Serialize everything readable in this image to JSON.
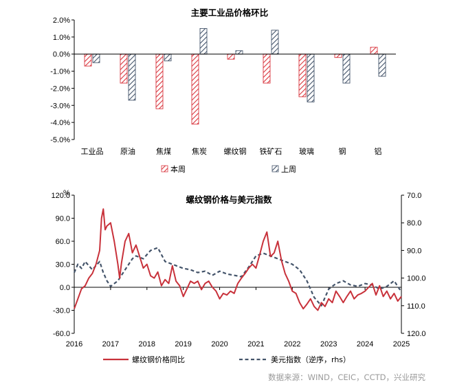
{
  "chart_data": [
    {
      "type": "bar",
      "title": "主要工业品价格环比",
      "categories": [
        "工业品",
        "原油",
        "焦煤",
        "焦炭",
        "螺纹钢",
        "铁矿石",
        "玻璃",
        "钢",
        "铝"
      ],
      "series": [
        {
          "name": "本周",
          "values": [
            -0.7,
            -1.7,
            -3.2,
            -4.1,
            -0.3,
            -1.7,
            -2.5,
            -0.2,
            0.4
          ],
          "color": "#d9363e",
          "pattern": "diagonal-hatch"
        },
        {
          "name": "上周",
          "values": [
            -0.5,
            -2.7,
            -0.4,
            1.5,
            0.2,
            1.4,
            -2.8,
            -1.7,
            -1.3
          ],
          "color": "#44546a",
          "pattern": "diagonal-hatch"
        }
      ],
      "ylim": [
        -5.0,
        2.0
      ],
      "yticks": [
        "2.0%",
        "1.0%",
        "0.0%",
        "-1.0%",
        "-2.0%",
        "-3.0%",
        "-4.0%",
        "-5.0%"
      ],
      "legend_position": "bottom"
    },
    {
      "type": "line",
      "title": "螺纹钢价格与美元指数",
      "ylabel_left": "%",
      "ylim_left": [
        -60,
        120
      ],
      "yticks_left": [
        "120.0",
        "90.0",
        "60.0",
        "30.0",
        "0.0",
        "-30.0",
        "-60.0"
      ],
      "ylim_right_reversed": [
        70,
        120
      ],
      "yticks_right": [
        "70.0",
        "80.0",
        "90.0",
        "100.0",
        "110.0",
        "120.0"
      ],
      "x_range": [
        2016.0,
        2025.0
      ],
      "xticks": [
        "2016",
        "2017",
        "2018",
        "2019",
        "2020",
        "2021",
        "2022",
        "2023",
        "2024",
        "2025"
      ],
      "series": [
        {
          "name": "螺纹钢价格同比",
          "axis": "left",
          "color": "#c8313a",
          "style": "solid",
          "x": [
            2016.0,
            2016.1,
            2016.2,
            2016.3,
            2016.4,
            2016.5,
            2016.6,
            2016.7,
            2016.75,
            2016.8,
            2016.85,
            2016.9,
            2017.0,
            2017.1,
            2017.2,
            2017.25,
            2017.3,
            2017.4,
            2017.5,
            2017.6,
            2017.7,
            2017.8,
            2017.9,
            2018.0,
            2018.1,
            2018.2,
            2018.3,
            2018.4,
            2018.5,
            2018.6,
            2018.7,
            2018.8,
            2018.9,
            2019.0,
            2019.1,
            2019.2,
            2019.3,
            2019.4,
            2019.5,
            2019.6,
            2019.7,
            2019.8,
            2019.9,
            2020.0,
            2020.1,
            2020.2,
            2020.3,
            2020.4,
            2020.5,
            2020.6,
            2020.7,
            2020.8,
            2020.9,
            2021.0,
            2021.1,
            2021.2,
            2021.3,
            2021.4,
            2021.5,
            2021.6,
            2021.7,
            2021.8,
            2021.9,
            2022.0,
            2022.1,
            2022.2,
            2022.3,
            2022.4,
            2022.5,
            2022.6,
            2022.7,
            2022.8,
            2022.9,
            2023.0,
            2023.1,
            2023.2,
            2023.3,
            2023.4,
            2023.5,
            2023.6,
            2023.7,
            2023.8,
            2023.9,
            2024.0,
            2024.1,
            2024.2,
            2024.3,
            2024.4,
            2024.5,
            2024.6,
            2024.7,
            2024.8,
            2024.9,
            2025.0
          ],
          "y": [
            -28,
            -15,
            -2,
            2,
            12,
            18,
            30,
            48,
            90,
            102,
            75,
            80,
            84,
            60,
            30,
            12,
            32,
            60,
            70,
            45,
            55,
            40,
            25,
            30,
            15,
            12,
            20,
            2,
            10,
            5,
            28,
            8,
            2,
            -12,
            -2,
            8,
            5,
            8,
            -3,
            5,
            8,
            0,
            -5,
            -15,
            -8,
            -10,
            -5,
            -8,
            5,
            12,
            18,
            25,
            30,
            25,
            42,
            60,
            72,
            40,
            45,
            60,
            35,
            18,
            8,
            -5,
            -8,
            -20,
            -28,
            -22,
            -15,
            -25,
            -30,
            -20,
            -25,
            -15,
            -20,
            -5,
            -12,
            -20,
            -12,
            -5,
            -15,
            -10,
            -8,
            -5,
            0,
            5,
            -10,
            2,
            -12,
            -5,
            -15,
            -8,
            -18,
            -12
          ]
        },
        {
          "name": "美元指数（逆序，rhs）",
          "axis": "right",
          "color": "#44546a",
          "style": "dashed",
          "x": [
            2016.0,
            2016.1,
            2016.2,
            2016.3,
            2016.5,
            2016.7,
            2016.8,
            2016.9,
            2017.0,
            2017.2,
            2017.4,
            2017.6,
            2017.7,
            2017.9,
            2018.1,
            2018.3,
            2018.5,
            2018.7,
            2018.9,
            2019.0,
            2019.2,
            2019.4,
            2019.6,
            2019.8,
            2020.0,
            2020.2,
            2020.4,
            2020.6,
            2020.8,
            2021.0,
            2021.2,
            2021.4,
            2021.6,
            2021.8,
            2022.0,
            2022.2,
            2022.4,
            2022.6,
            2022.8,
            2023.0,
            2023.2,
            2023.4,
            2023.6,
            2023.8,
            2024.0,
            2024.2,
            2024.4,
            2024.6,
            2024.8,
            2025.0
          ],
          "y": [
            98,
            95,
            96.5,
            94,
            97,
            94,
            98,
            101,
            103,
            101,
            97,
            93,
            92,
            93,
            90,
            89,
            94,
            95,
            96,
            96.5,
            97,
            98,
            97.5,
            99,
            97.5,
            98.5,
            99,
            99.5,
            96,
            92,
            91,
            92,
            93,
            94,
            95,
            97,
            101,
            107,
            110,
            104,
            102,
            101,
            102.5,
            103,
            102,
            102.5,
            104,
            103,
            101,
            105
          ]
        }
      ],
      "legend_position": "bottom"
    }
  ],
  "source": "数据来源：WIND，CEIC，CCTD，兴业研究"
}
